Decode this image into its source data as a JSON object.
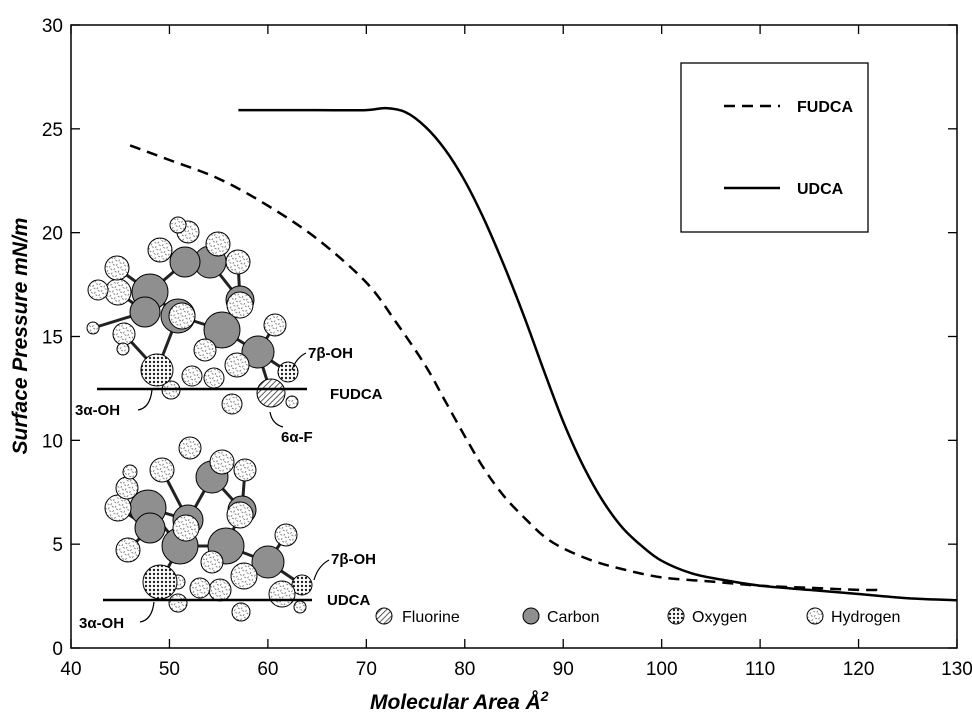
{
  "chart_data": {
    "type": "line",
    "xlabel": "Molecular Area Å",
    "xlabel_sup": "2",
    "ylabel": "Surface Pressure mN/m",
    "xlim": [
      40,
      130
    ],
    "ylim": [
      0,
      30
    ],
    "x_ticks": [
      40,
      50,
      60,
      70,
      80,
      90,
      100,
      110,
      120,
      130
    ],
    "y_ticks": [
      0,
      5,
      10,
      15,
      20,
      25,
      30
    ],
    "grid": false,
    "legend_position": "top-right",
    "series": [
      {
        "name": "FUDCA",
        "style": "dashed",
        "color": "#000000",
        "x": [
          46,
          50,
          55,
          60,
          65,
          70,
          73,
          76,
          78,
          80,
          82,
          84,
          86,
          88,
          90,
          93,
          96,
          100,
          105,
          110,
          115,
          120,
          122
        ],
        "y": [
          24.2,
          23.5,
          22.6,
          21.3,
          19.7,
          17.6,
          15.7,
          13.6,
          11.9,
          10.2,
          8.6,
          7.3,
          6.3,
          5.4,
          4.8,
          4.2,
          3.8,
          3.4,
          3.2,
          3.0,
          2.9,
          2.8,
          2.8
        ]
      },
      {
        "name": "UDCA",
        "style": "solid",
        "color": "#000000",
        "x": [
          57,
          60,
          65,
          70,
          72,
          74,
          76,
          78,
          80,
          82,
          84,
          86,
          88,
          90,
          92,
          94,
          96,
          98,
          100,
          103,
          106,
          110,
          115,
          120,
          125,
          130
        ],
        "y": [
          25.9,
          25.9,
          25.9,
          25.9,
          26.0,
          25.8,
          25.1,
          24.0,
          22.5,
          20.6,
          18.4,
          16.0,
          13.4,
          10.9,
          8.8,
          7.1,
          5.8,
          4.9,
          4.2,
          3.6,
          3.3,
          3.0,
          2.8,
          2.6,
          2.4,
          2.3
        ]
      }
    ],
    "annotations": {
      "fudca_molecule_label": "FUDCA",
      "udca_molecule_label": "UDCA",
      "fudca_7b": "7β-OH",
      "fudca_3a": "3α-OH",
      "fudca_6a": "6α-F",
      "udca_7b": "7β-OH",
      "udca_3a": "3α-OH"
    },
    "atom_legend": [
      {
        "label": "Fluorine",
        "pattern": "hatch"
      },
      {
        "label": "Carbon",
        "pattern": "gray"
      },
      {
        "label": "Oxygen",
        "pattern": "dots"
      },
      {
        "label": "Hydrogen",
        "pattern": "cross"
      }
    ]
  }
}
